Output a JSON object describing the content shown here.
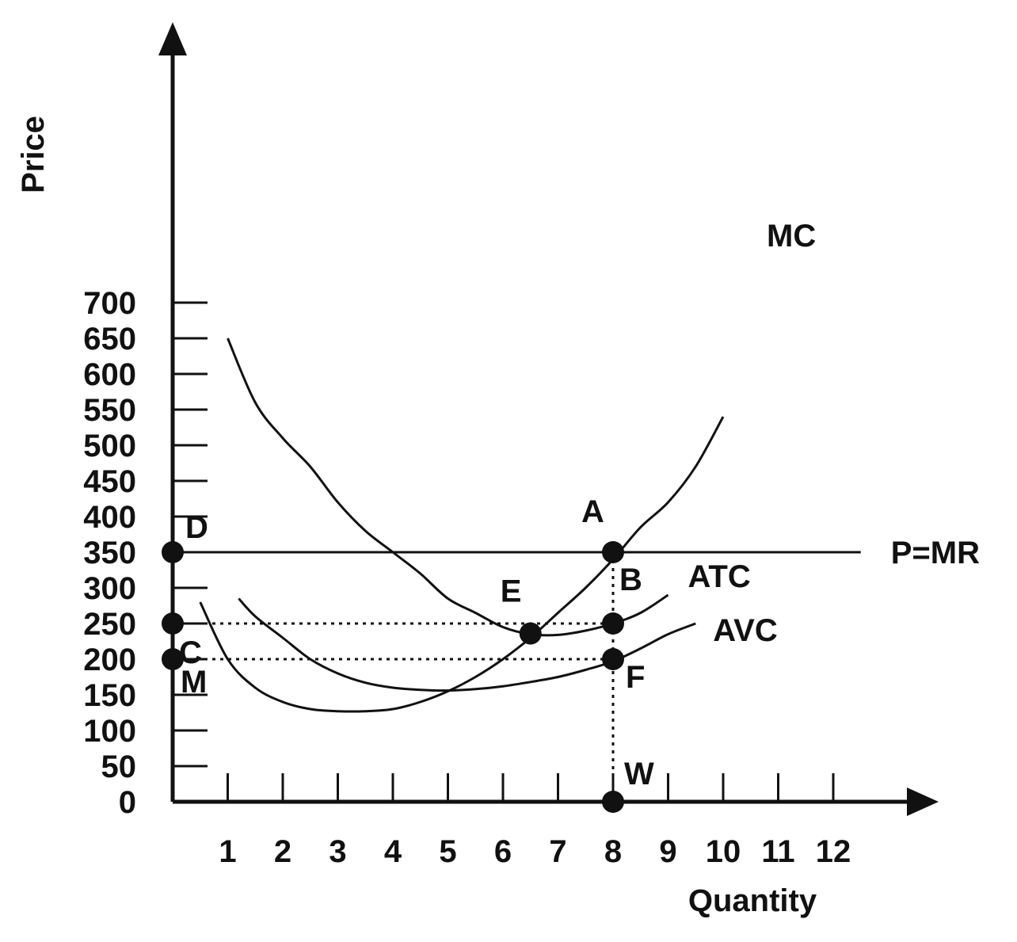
{
  "chart_data": {
    "type": "line",
    "xlabel": "Quantity",
    "ylabel": "Price",
    "xlim": [
      0,
      13
    ],
    "ylim": [
      0,
      700
    ],
    "x_ticks": [
      1,
      2,
      3,
      4,
      5,
      6,
      7,
      8,
      9,
      10,
      11,
      12
    ],
    "y_ticks": [
      0,
      50,
      100,
      150,
      200,
      250,
      300,
      350,
      400,
      450,
      500,
      550,
      600,
      650,
      700
    ],
    "series": [
      {
        "name": "MC",
        "points": [
          [
            0.5,
            280
          ],
          [
            1,
            200
          ],
          [
            1.5,
            160
          ],
          [
            2,
            140
          ],
          [
            2.5,
            130
          ],
          [
            3,
            127
          ],
          [
            3.5,
            127
          ],
          [
            4,
            130
          ],
          [
            4.5,
            140
          ],
          [
            5,
            155
          ],
          [
            5.5,
            175
          ],
          [
            6,
            200
          ],
          [
            6.5,
            230
          ],
          [
            7,
            265
          ],
          [
            7.5,
            300
          ],
          [
            8,
            340
          ],
          [
            8.5,
            385
          ],
          [
            9,
            420
          ],
          [
            9.5,
            470
          ],
          [
            10,
            540
          ]
        ]
      },
      {
        "name": "ATC",
        "points": [
          [
            1,
            650
          ],
          [
            1.5,
            560
          ],
          [
            2,
            510
          ],
          [
            2.5,
            470
          ],
          [
            3,
            420
          ],
          [
            3.5,
            380
          ],
          [
            4,
            350
          ],
          [
            4.5,
            320
          ],
          [
            5,
            285
          ],
          [
            5.5,
            265
          ],
          [
            6,
            245
          ],
          [
            6.5,
            235
          ],
          [
            7,
            234
          ],
          [
            7.5,
            240
          ],
          [
            8,
            250
          ],
          [
            8.5,
            265
          ],
          [
            9,
            290
          ]
        ]
      },
      {
        "name": "AVC",
        "points": [
          [
            1.2,
            285
          ],
          [
            1.5,
            260
          ],
          [
            2,
            230
          ],
          [
            2.5,
            200
          ],
          [
            3,
            180
          ],
          [
            3.5,
            167
          ],
          [
            4,
            160
          ],
          [
            4.5,
            157
          ],
          [
            5,
            156
          ],
          [
            5.5,
            158
          ],
          [
            6,
            162
          ],
          [
            6.5,
            168
          ],
          [
            7,
            175
          ],
          [
            7.5,
            185
          ],
          [
            8,
            197
          ],
          [
            8.5,
            215
          ],
          [
            9,
            235
          ],
          [
            9.5,
            250
          ]
        ]
      },
      {
        "name": "P=MR",
        "points": [
          [
            0,
            350
          ],
          [
            12.5,
            350
          ]
        ]
      }
    ],
    "guide_lines": [
      {
        "from": [
          0,
          250
        ],
        "to": [
          8,
          250
        ]
      },
      {
        "from": [
          0,
          200
        ],
        "to": [
          8,
          200
        ]
      },
      {
        "from": [
          8,
          350
        ],
        "to": [
          8,
          0
        ]
      }
    ],
    "labeled_points": [
      {
        "label": "A",
        "x": 8,
        "y": 350
      },
      {
        "label": "B",
        "x": 8,
        "y": 250
      },
      {
        "label": "C",
        "x": 0,
        "y": 250
      },
      {
        "label": "D",
        "x": 0,
        "y": 350
      },
      {
        "label": "E",
        "x": 6.5,
        "y": 236
      },
      {
        "label": "F",
        "x": 8,
        "y": 200
      },
      {
        "label": "M",
        "x": 0,
        "y": 200
      },
      {
        "label": "W",
        "x": 8,
        "y": 0
      }
    ],
    "grid": false
  }
}
